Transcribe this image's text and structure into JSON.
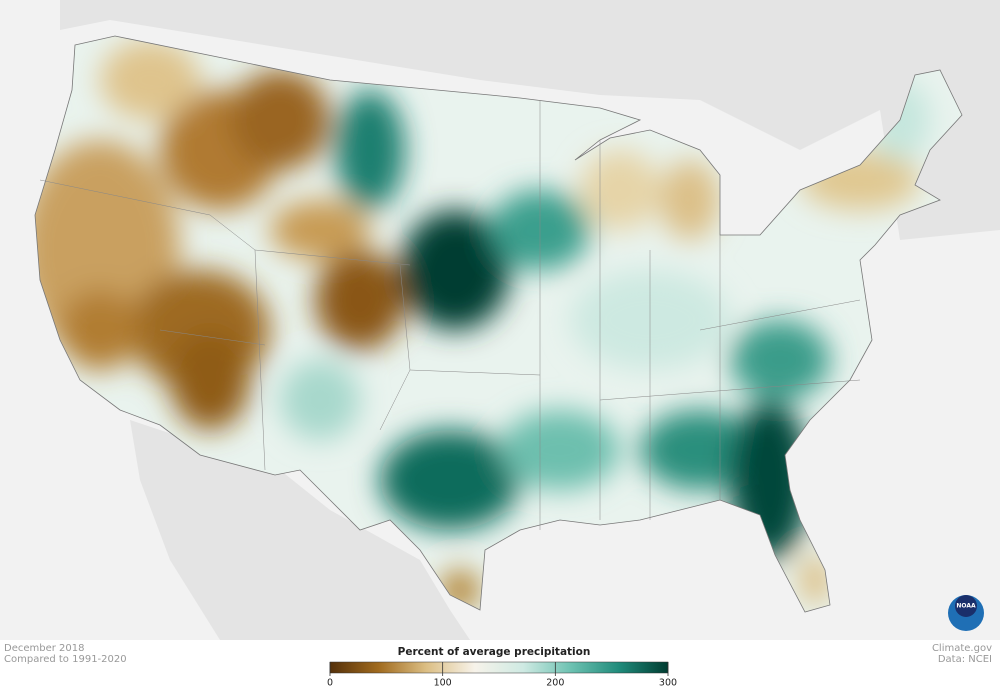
{
  "footer_left": {
    "title": "December 2018",
    "subtitle": "Compared to 1991-2020"
  },
  "legend": {
    "title": "Percent of average precipitation",
    "min": 0,
    "max": 300,
    "ticks": [
      0,
      100,
      200,
      300
    ],
    "colors": [
      "#54300a",
      "#a06a1e",
      "#dcbf85",
      "#f7f3ea",
      "#cfeae3",
      "#6cc1b1",
      "#1f8a7a",
      "#003c31"
    ]
  },
  "footer_right": {
    "source": "Climate.gov",
    "data": "Data: NCEI"
  },
  "logo": "NOAA"
}
